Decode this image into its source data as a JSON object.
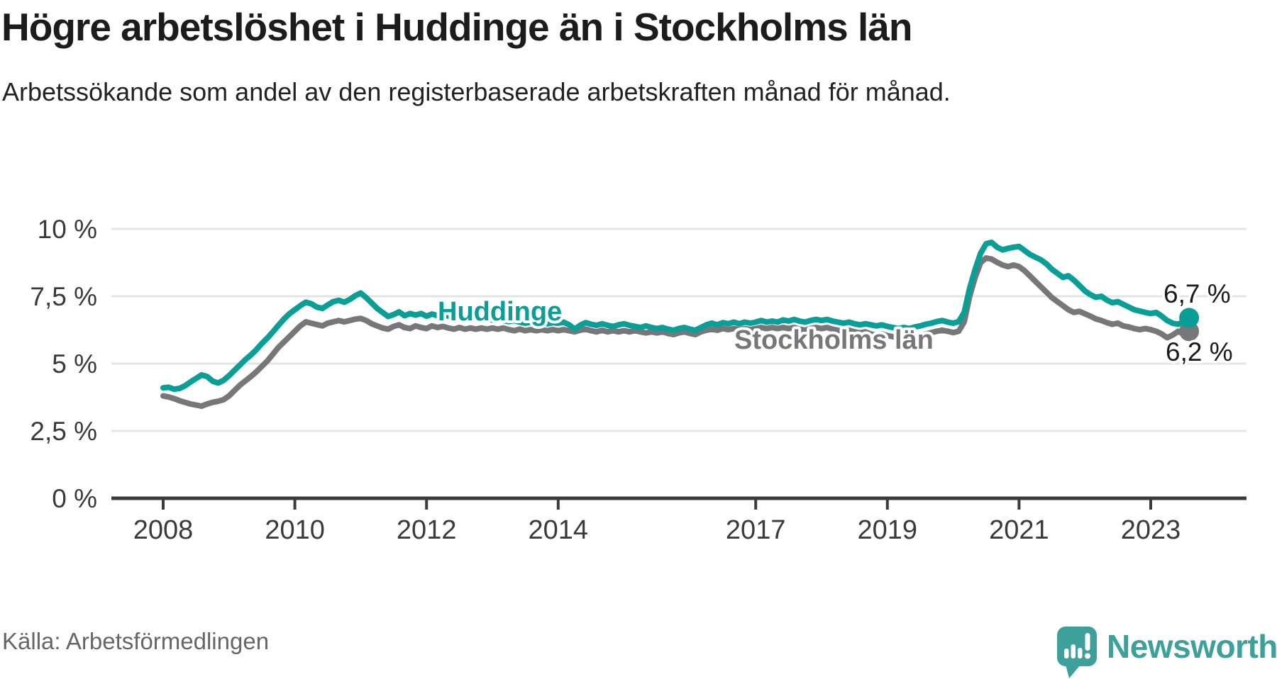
{
  "header": {
    "title": "Högre arbetslöshet i Huddinge än i Stockholms län",
    "subtitle": "Arbetssökande som andel av den registerbaserade arbetskraften månad för månad."
  },
  "footer": {
    "source": "Källa: Arbetsförmedlingen",
    "brand": "Newsworthy"
  },
  "colors": {
    "huddinge": "#0a9f96",
    "stockholm": "#77777b",
    "grid": "#e4e4e4",
    "axis": "#3b3b3b",
    "value_label": "#1a1a1a",
    "logo": "#3da09a"
  },
  "chart_data": {
    "type": "line",
    "unit": "%",
    "x_start_year": 2008,
    "x_start_month": 1,
    "x_ticks": [
      2008,
      2010,
      2012,
      2014,
      2017,
      2019,
      2021,
      2023
    ],
    "y_ticks": [
      {
        "value": 10,
        "label": "10 %"
      },
      {
        "value": 7.5,
        "label": "7,5 %"
      },
      {
        "value": 5,
        "label": "5 %"
      },
      {
        "value": 2.5,
        "label": "2,5 %"
      },
      {
        "value": 0,
        "label": "0 %"
      }
    ],
    "ylim": [
      0,
      10.5
    ],
    "grid": true,
    "legend_position": "inline-labels",
    "series": [
      {
        "name": "Stockholms län",
        "color_key": "stockholm",
        "end_label": "6,2 %",
        "values": [
          3.8,
          3.76,
          3.7,
          3.62,
          3.56,
          3.5,
          3.46,
          3.42,
          3.5,
          3.56,
          3.6,
          3.66,
          3.8,
          4.0,
          4.2,
          4.36,
          4.52,
          4.7,
          4.9,
          5.1,
          5.35,
          5.6,
          5.8,
          6.0,
          6.2,
          6.4,
          6.55,
          6.5,
          6.45,
          6.4,
          6.5,
          6.55,
          6.6,
          6.55,
          6.6,
          6.65,
          6.68,
          6.6,
          6.48,
          6.4,
          6.32,
          6.28,
          6.38,
          6.44,
          6.34,
          6.3,
          6.4,
          6.34,
          6.3,
          6.4,
          6.34,
          6.38,
          6.32,
          6.28,
          6.34,
          6.28,
          6.32,
          6.28,
          6.32,
          6.28,
          6.32,
          6.28,
          6.32,
          6.26,
          6.22,
          6.28,
          6.22,
          6.26,
          6.22,
          6.26,
          6.22,
          6.26,
          6.22,
          6.26,
          6.22,
          6.18,
          6.24,
          6.28,
          6.22,
          6.18,
          6.24,
          6.18,
          6.22,
          6.18,
          6.22,
          6.18,
          6.22,
          6.18,
          6.14,
          6.18,
          6.14,
          6.18,
          6.12,
          6.08,
          6.14,
          6.18,
          6.12,
          6.08,
          6.18,
          6.24,
          6.28,
          6.24,
          6.3,
          6.26,
          6.3,
          6.26,
          6.3,
          6.26,
          6.3,
          6.34,
          6.3,
          6.34,
          6.3,
          6.34,
          6.3,
          6.34,
          6.28,
          6.24,
          6.3,
          6.34,
          6.3,
          6.34,
          6.28,
          6.24,
          6.2,
          6.24,
          6.18,
          6.14,
          6.18,
          6.1,
          6.05,
          6.1,
          6.04,
          6.0,
          5.95,
          6.0,
          5.96,
          6.0,
          6.05,
          6.1,
          6.15,
          6.2,
          6.24,
          6.2,
          6.15,
          6.2,
          6.55,
          7.5,
          8.2,
          8.75,
          8.92,
          8.88,
          8.76,
          8.66,
          8.6,
          8.66,
          8.6,
          8.45,
          8.25,
          8.05,
          7.85,
          7.65,
          7.45,
          7.3,
          7.15,
          7.0,
          6.9,
          6.94,
          6.85,
          6.76,
          6.66,
          6.6,
          6.52,
          6.46,
          6.5,
          6.4,
          6.36,
          6.3,
          6.26,
          6.3,
          6.26,
          6.2,
          6.1,
          5.96,
          6.06,
          6.2,
          6.1,
          6.2
        ]
      },
      {
        "name": "Huddinge",
        "color_key": "huddinge",
        "end_label": "6,7 %",
        "values": [
          4.1,
          4.12,
          4.05,
          4.08,
          4.18,
          4.32,
          4.45,
          4.58,
          4.52,
          4.35,
          4.28,
          4.38,
          4.55,
          4.75,
          4.95,
          5.15,
          5.32,
          5.52,
          5.75,
          5.95,
          6.18,
          6.42,
          6.65,
          6.85,
          7.0,
          7.15,
          7.28,
          7.22,
          7.1,
          7.05,
          7.18,
          7.3,
          7.35,
          7.28,
          7.38,
          7.52,
          7.62,
          7.45,
          7.25,
          7.05,
          6.9,
          6.75,
          6.82,
          6.92,
          6.78,
          6.86,
          6.8,
          6.86,
          6.76,
          6.84,
          6.78,
          6.82,
          6.76,
          6.72,
          6.76,
          6.7,
          6.66,
          6.7,
          6.64,
          6.66,
          6.62,
          6.66,
          6.6,
          6.56,
          6.6,
          6.54,
          6.5,
          6.54,
          6.5,
          6.54,
          6.48,
          6.52,
          6.5,
          6.54,
          6.44,
          6.28,
          6.42,
          6.52,
          6.46,
          6.42,
          6.48,
          6.42,
          6.38,
          6.44,
          6.48,
          6.42,
          6.38,
          6.34,
          6.4,
          6.34,
          6.3,
          6.34,
          6.28,
          6.24,
          6.3,
          6.34,
          6.28,
          6.24,
          6.34,
          6.44,
          6.5,
          6.44,
          6.52,
          6.48,
          6.54,
          6.48,
          6.54,
          6.5,
          6.54,
          6.6,
          6.54,
          6.58,
          6.54,
          6.62,
          6.58,
          6.64,
          6.58,
          6.54,
          6.6,
          6.64,
          6.6,
          6.64,
          6.58,
          6.54,
          6.5,
          6.54,
          6.48,
          6.44,
          6.48,
          6.44,
          6.4,
          6.44,
          6.38,
          6.34,
          6.3,
          6.34,
          6.3,
          6.36,
          6.4,
          6.46,
          6.5,
          6.56,
          6.6,
          6.54,
          6.5,
          6.56,
          6.9,
          7.8,
          8.5,
          9.1,
          9.45,
          9.5,
          9.32,
          9.22,
          9.28,
          9.32,
          9.35,
          9.2,
          9.05,
          8.95,
          8.85,
          8.7,
          8.5,
          8.35,
          8.2,
          8.26,
          8.1,
          7.9,
          7.7,
          7.56,
          7.46,
          7.5,
          7.36,
          7.26,
          7.3,
          7.2,
          7.1,
          7.0,
          6.95,
          6.9,
          6.86,
          6.9,
          6.76,
          6.6,
          6.5,
          6.46,
          6.56,
          6.7
        ]
      }
    ]
  }
}
